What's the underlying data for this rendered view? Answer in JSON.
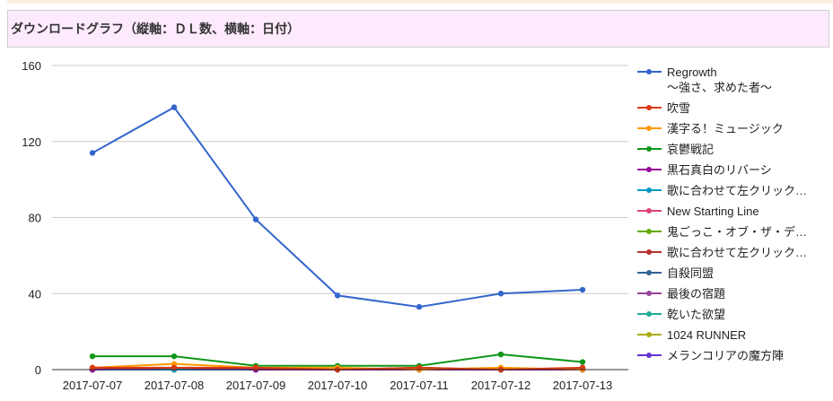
{
  "page": {
    "title": "ダウンロードグラフ（縦軸：ＤＬ数、横軸：日付）"
  },
  "chart_data": {
    "type": "line",
    "title": "",
    "xlabel": "",
    "ylabel": "",
    "ylim": [
      0,
      160
    ],
    "yticks": [
      "0",
      "40",
      "80",
      "120",
      "160"
    ],
    "grid": true,
    "legend_position": "right",
    "categories": [
      "2017-07-07",
      "2017-07-08",
      "2017-07-09",
      "2017-07-10",
      "2017-07-11",
      "2017-07-12",
      "2017-07-13"
    ],
    "series": [
      {
        "name": "Regrowth\n～強さ、求めた者～",
        "color": "#3366cc",
        "values": [
          114,
          138,
          79,
          39,
          33,
          40,
          42
        ]
      },
      {
        "name": "吹雪",
        "color": "#dc3912",
        "values": [
          1,
          1,
          1,
          0,
          1,
          0,
          1
        ]
      },
      {
        "name": "漢字る！ミュージック",
        "color": "#ff9900",
        "values": [
          1,
          3,
          1,
          1,
          0,
          1,
          0
        ]
      },
      {
        "name": "哀鬱戦記",
        "color": "#109618",
        "values": [
          7,
          7,
          2,
          2,
          2,
          8,
          4
        ]
      },
      {
        "name": "黒石真白のリバーシ",
        "color": "#990099",
        "values": [
          0,
          1,
          0,
          0,
          0,
          0,
          0
        ]
      },
      {
        "name": "歌に合わせて左クリック…",
        "color": "#0099c6",
        "values": [
          0,
          0,
          0,
          0,
          0,
          0,
          0
        ]
      },
      {
        "name": "New Starting Line",
        "color": "#dd4477",
        "values": [
          0,
          0,
          0,
          0,
          0,
          0,
          0
        ]
      },
      {
        "name": "鬼ごっこ・オブ・ザ・デ…",
        "color": "#66aa00",
        "values": [
          0,
          0,
          0,
          0,
          0,
          0,
          0
        ]
      },
      {
        "name": "歌に合わせて左クリック…",
        "color": "#b82e2e",
        "values": [
          0,
          0,
          0,
          0,
          1,
          0,
          0
        ]
      },
      {
        "name": "自殺同盟",
        "color": "#316395",
        "values": [
          0,
          0,
          0,
          0,
          0,
          0,
          0
        ]
      },
      {
        "name": "最後の宿題",
        "color": "#994499",
        "values": [
          0,
          0,
          0,
          0,
          0,
          0,
          0
        ]
      },
      {
        "name": "乾いた欲望",
        "color": "#22aa99",
        "values": [
          0,
          0,
          0,
          0,
          0,
          0,
          0
        ]
      },
      {
        "name": "1024 RUNNER",
        "color": "#aaaa11",
        "values": [
          0,
          0,
          0,
          0,
          0,
          0,
          0
        ]
      },
      {
        "name": "メランコリアの魔方陣",
        "color": "#6633cc",
        "values": [
          0,
          0,
          0,
          0,
          0,
          0,
          0
        ]
      }
    ]
  }
}
